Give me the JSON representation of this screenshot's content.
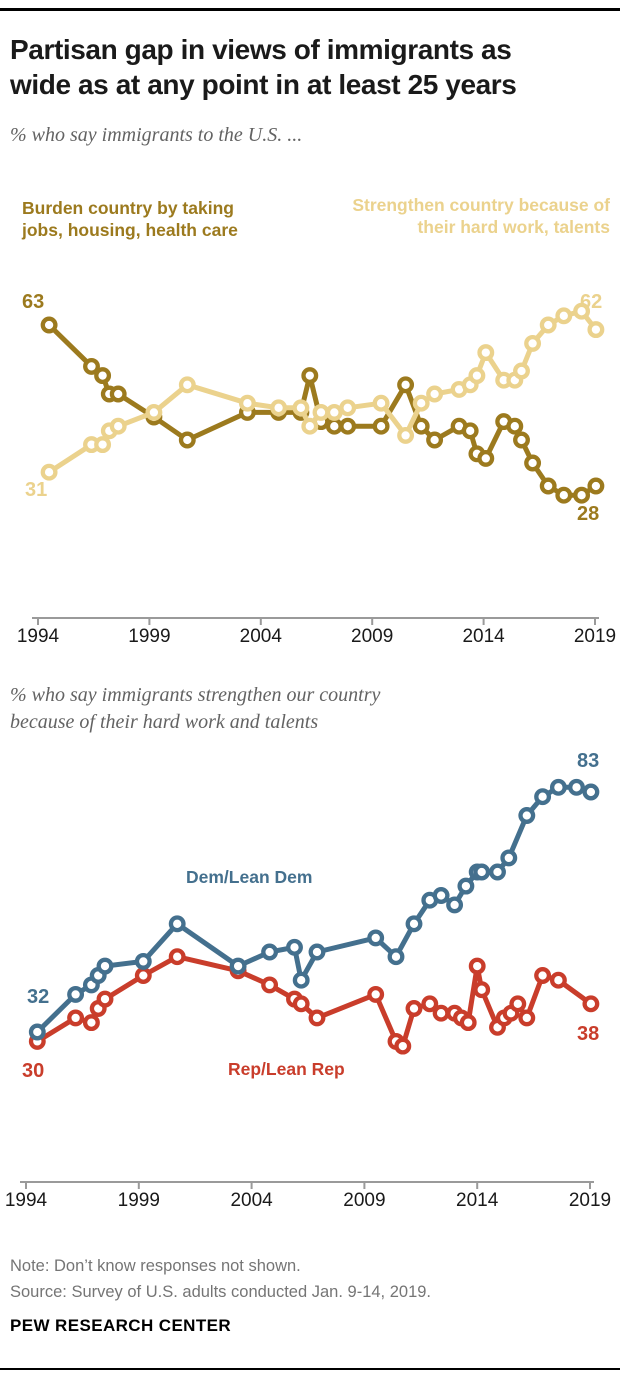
{
  "header": {
    "title_lines": [
      "Partisan gap in views of immigrants as",
      "wide as at any point in at least 25 years"
    ],
    "subtitle": "% who say immigrants to the U.S. ..."
  },
  "colors": {
    "burden": "#9C7A1E",
    "strengthen": "#EBD28D",
    "dem": "#44708E",
    "rep": "#C93D2B",
    "axis": "#9A9A9A",
    "tick_label": "#1a1a1a"
  },
  "chart_data": [
    {
      "type": "line",
      "title": "% who say immigrants to the U.S. ...",
      "x_ticks": [
        1994,
        1999,
        2004,
        2009,
        2014,
        2019
      ],
      "x_range": [
        1994,
        2019
      ],
      "grid": false,
      "series": [
        {
          "id": "burden",
          "name": "Burden country by taking jobs, housing, health care",
          "color": "#9C7A1E",
          "start_label": "63",
          "end_label": "28",
          "points": [
            [
              1994.5,
              63
            ],
            [
              1996.4,
              54
            ],
            [
              1996.9,
              52
            ],
            [
              1997.2,
              48
            ],
            [
              1997.6,
              48
            ],
            [
              1999.2,
              43
            ],
            [
              2000.7,
              38
            ],
            [
              2003.4,
              44
            ],
            [
              2004.8,
              44
            ],
            [
              2005.8,
              44
            ],
            [
              2006.2,
              52
            ],
            [
              2006.7,
              42
            ],
            [
              2007.3,
              41
            ],
            [
              2007.9,
              41
            ],
            [
              2009.4,
              41
            ],
            [
              2010.5,
              50
            ],
            [
              2011.2,
              41
            ],
            [
              2011.8,
              38
            ],
            [
              2012.9,
              41
            ],
            [
              2013.4,
              40
            ],
            [
              2013.7,
              35
            ],
            [
              2014.1,
              34
            ],
            [
              2014.9,
              42
            ],
            [
              2015.4,
              41
            ],
            [
              2015.7,
              38
            ],
            [
              2016.2,
              33
            ],
            [
              2016.9,
              28
            ],
            [
              2017.6,
              26
            ],
            [
              2018.4,
              26
            ],
            [
              2019.04,
              28
            ]
          ]
        },
        {
          "id": "strengthen",
          "name": "Strengthen country because of their hard work, talents",
          "color": "#EBD28D",
          "start_label": "31",
          "end_label": "62",
          "points": [
            [
              1994.5,
              31
            ],
            [
              1996.4,
              37
            ],
            [
              1996.9,
              37
            ],
            [
              1997.2,
              40
            ],
            [
              1997.6,
              41
            ],
            [
              1999.2,
              44
            ],
            [
              2000.7,
              50
            ],
            [
              2003.4,
              46
            ],
            [
              2004.8,
              45
            ],
            [
              2005.8,
              45
            ],
            [
              2006.2,
              41
            ],
            [
              2006.7,
              44
            ],
            [
              2007.3,
              44
            ],
            [
              2007.9,
              45
            ],
            [
              2009.4,
              46
            ],
            [
              2010.5,
              39
            ],
            [
              2011.2,
              46
            ],
            [
              2011.8,
              48
            ],
            [
              2012.9,
              49
            ],
            [
              2013.4,
              50
            ],
            [
              2013.7,
              52
            ],
            [
              2014.1,
              57
            ],
            [
              2014.9,
              51
            ],
            [
              2015.4,
              51
            ],
            [
              2015.7,
              53
            ],
            [
              2016.2,
              59
            ],
            [
              2016.9,
              63
            ],
            [
              2017.6,
              65
            ],
            [
              2018.4,
              66
            ],
            [
              2019.04,
              62
            ]
          ]
        }
      ]
    },
    {
      "type": "line",
      "title": "% who say immigrants strengthen our country because of their hard work and talents",
      "x_ticks": [
        1994,
        1999,
        2004,
        2009,
        2014,
        2019
      ],
      "x_range": [
        1994,
        2019
      ],
      "grid": false,
      "series": [
        {
          "id": "rep",
          "name": "Rep/Lean Rep",
          "color": "#C93D2B",
          "start_label": "30",
          "end_label": "38",
          "points": [
            [
              1994.5,
              30
            ],
            [
              1996.2,
              35
            ],
            [
              1996.9,
              34
            ],
            [
              1997.2,
              37
            ],
            [
              1997.5,
              39
            ],
            [
              1999.2,
              44
            ],
            [
              2000.7,
              48
            ],
            [
              2003.4,
              45
            ],
            [
              2004.8,
              42
            ],
            [
              2005.9,
              39
            ],
            [
              2006.2,
              38
            ],
            [
              2006.9,
              35
            ],
            [
              2009.5,
              40
            ],
            [
              2010.4,
              30
            ],
            [
              2010.7,
              29
            ],
            [
              2011.2,
              37
            ],
            [
              2011.9,
              38
            ],
            [
              2012.4,
              36
            ],
            [
              2013.0,
              36
            ],
            [
              2013.3,
              35
            ],
            [
              2013.6,
              34
            ],
            [
              2014.0,
              46
            ],
            [
              2014.2,
              41
            ],
            [
              2014.9,
              33
            ],
            [
              2015.2,
              35
            ],
            [
              2015.5,
              36
            ],
            [
              2015.8,
              38
            ],
            [
              2016.2,
              35
            ],
            [
              2016.9,
              44
            ],
            [
              2017.6,
              43
            ],
            [
              2019.04,
              38
            ]
          ]
        },
        {
          "id": "dem",
          "name": "Dem/Lean Dem",
          "color": "#44708E",
          "start_label": "32",
          "end_label": "83",
          "points": [
            [
              1994.5,
              32
            ],
            [
              1996.2,
              40
            ],
            [
              1996.9,
              42
            ],
            [
              1997.2,
              44
            ],
            [
              1997.5,
              46
            ],
            [
              1999.2,
              47
            ],
            [
              2000.7,
              55
            ],
            [
              2003.4,
              46
            ],
            [
              2004.8,
              49
            ],
            [
              2005.9,
              50
            ],
            [
              2006.2,
              43
            ],
            [
              2006.9,
              49
            ],
            [
              2009.5,
              52
            ],
            [
              2010.4,
              48
            ],
            [
              2011.2,
              55
            ],
            [
              2011.9,
              60
            ],
            [
              2012.4,
              61
            ],
            [
              2013.0,
              59
            ],
            [
              2013.5,
              63
            ],
            [
              2014.0,
              66
            ],
            [
              2014.2,
              66
            ],
            [
              2014.9,
              66
            ],
            [
              2015.4,
              69
            ],
            [
              2016.2,
              78
            ],
            [
              2016.9,
              82
            ],
            [
              2017.6,
              84
            ],
            [
              2018.4,
              84
            ],
            [
              2019.04,
              83
            ]
          ]
        }
      ]
    }
  ],
  "chart2_subtitle_lines": [
    "% who say immigrants strengthen our country",
    "because of their hard work and talents"
  ],
  "footer": {
    "note": "Note: Don’t know responses not shown.",
    "source": "Source: Survey of U.S. adults conducted Jan. 9-14, 2019.",
    "brand": "PEW RESEARCH CENTER"
  }
}
